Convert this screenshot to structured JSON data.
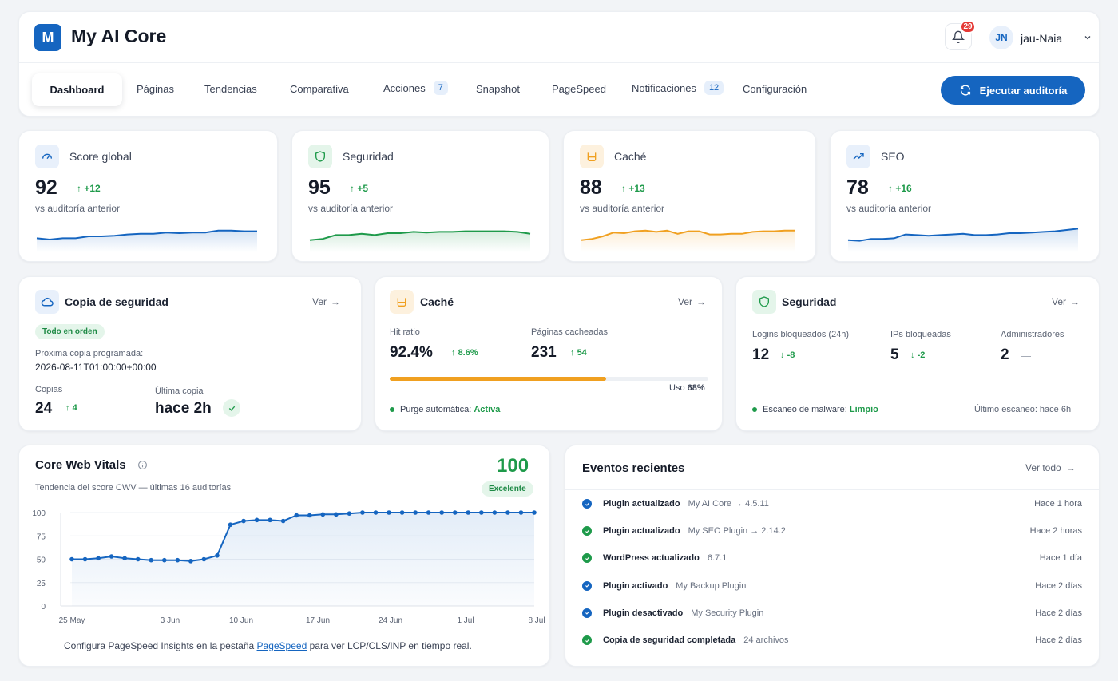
{
  "app": {
    "logo_letter": "M",
    "title": "My AI Core"
  },
  "header": {
    "notifications_count": "29",
    "user_initials": "JN",
    "user_name": "jau-Naia"
  },
  "tabs": [
    {
      "label": "Dashboard",
      "active": true
    },
    {
      "label": "Páginas"
    },
    {
      "label": "Tendencias"
    },
    {
      "label": "Comparativa"
    },
    {
      "label": "Acciones",
      "count": "7"
    },
    {
      "label": "Snapshot"
    },
    {
      "label": "PageSpeed"
    },
    {
      "label": "Notificaciones",
      "count": "12"
    },
    {
      "label": "Configuración"
    }
  ],
  "audit_button": "Ejecutar auditoría",
  "kpis": [
    {
      "title": "Score global",
      "value": "92",
      "delta": "+12",
      "sub": "vs auditoría anterior",
      "color": "#1565c0",
      "icon": "gauge-icon",
      "trend": [
        47,
        45,
        47,
        47,
        50,
        50,
        51,
        53,
        54,
        54,
        56,
        55,
        56,
        56,
        59,
        59,
        58,
        58
      ]
    },
    {
      "title": "Seguridad",
      "value": "95",
      "delta": "+5",
      "sub": "vs auditoría anterior",
      "color": "#1e9a4a",
      "icon": "shield-icon",
      "trend": [
        44,
        46,
        52,
        52,
        54,
        52,
        55,
        55,
        57,
        56,
        57,
        57,
        58,
        58,
        58,
        58,
        57,
        54
      ]
    },
    {
      "title": "Caché",
      "value": "88",
      "delta": "+13",
      "sub": "vs auditoría anterior",
      "color": "#f0a020",
      "icon": "cache-icon",
      "trend": [
        44,
        46,
        50,
        56,
        55,
        58,
        59,
        57,
        59,
        54,
        58,
        58,
        53,
        53,
        54,
        54,
        57,
        58,
        58,
        59,
        59
      ]
    },
    {
      "title": "SEO",
      "value": "78",
      "delta": "+16",
      "sub": "vs auditoría anterior",
      "color": "#1565c0",
      "icon": "trend-up-icon",
      "trend": [
        44,
        43,
        46,
        46,
        47,
        53,
        52,
        51,
        52,
        53,
        54,
        52,
        52,
        53,
        55,
        55,
        56,
        57,
        58,
        60,
        62
      ]
    }
  ],
  "backup": {
    "title": "Copia de seguridad",
    "link": "Ver",
    "status": "Todo en orden",
    "next_label": "Próxima copia programada:",
    "next_value": "2026-08-11T01:00:00+00:00",
    "copies_label": "Copias",
    "copies_value": "24",
    "copies_delta": "4",
    "last_label": "Última copia",
    "last_value": "hace 2h"
  },
  "cache": {
    "title": "Caché",
    "link": "Ver",
    "hit_label": "Hit ratio",
    "hit_value": "92.4%",
    "hit_delta": "8.6%",
    "pages_label": "Páginas cacheadas",
    "pages_value": "231",
    "pages_delta": "54",
    "usage_label": "Uso",
    "usage_value": "68%",
    "usage_fraction": 0.68,
    "purge_label": "Purge automática:",
    "purge_value": "Activa"
  },
  "security": {
    "title": "Seguridad",
    "link": "Ver",
    "logins_label": "Logins bloqueados (24h)",
    "logins_value": "12",
    "logins_delta": "-8",
    "ips_label": "IPs bloqueadas",
    "ips_value": "5",
    "ips_delta": "-2",
    "admins_label": "Administradores",
    "admins_value": "2",
    "admins_delta": "—",
    "scan_label": "Escaneo de malware:",
    "scan_value": "Limpio",
    "last_scan": "Último escaneo: hace 6h"
  },
  "cwv": {
    "title": "Core Web Vitals",
    "score": "100",
    "subtitle": "Tendencia del score CWV — últimas 16 auditorías",
    "badge": "Excelente",
    "footer_pre": "Configura PageSpeed Insights en la pestaña",
    "footer_link": "PageSpeed",
    "footer_post": "para ver LCP/CLS/INP en tiempo real."
  },
  "chart_data": {
    "type": "line",
    "x_tick_labels": [
      "25 May",
      "3 Jun",
      "10 Jun",
      "17 Jun",
      "24 Jun",
      "1 Jul",
      "8 Jul"
    ],
    "y_ticks": [
      0,
      25,
      50,
      75,
      100
    ],
    "ylim": [
      0,
      100
    ],
    "values": [
      50,
      50,
      51,
      53,
      51,
      50,
      49,
      49,
      49,
      48,
      50,
      54,
      87,
      91,
      92,
      92,
      91,
      97,
      97,
      98,
      98,
      99,
      100,
      100,
      100,
      100,
      100,
      100,
      100,
      100,
      100,
      100,
      100,
      100,
      100,
      100
    ],
    "color": "#1565c0",
    "grid": true
  },
  "events": {
    "title": "Eventos recientes",
    "link": "Ver todo",
    "items": [
      {
        "action": "Plugin actualizado",
        "detail": "My AI Core → 4.5.11",
        "time": "Hace 1 hora",
        "color": "#1565c0"
      },
      {
        "action": "Plugin actualizado",
        "detail": "My SEO Plugin → 2.14.2",
        "time": "Hace 2 horas",
        "color": "#1e9a4a"
      },
      {
        "action": "WordPress actualizado",
        "detail": "6.7.1",
        "time": "Hace 1 día",
        "color": "#1e9a4a"
      },
      {
        "action": "Plugin activado",
        "detail": "My Backup Plugin",
        "time": "Hace 2 días",
        "color": "#1565c0"
      },
      {
        "action": "Plugin desactivado",
        "detail": "My Security Plugin",
        "time": "Hace 2 días",
        "color": "#1565c0"
      },
      {
        "action": "Copia de seguridad completada",
        "detail": "24 archivos",
        "time": "Hace 2 días",
        "color": "#1e9a4a"
      }
    ]
  }
}
